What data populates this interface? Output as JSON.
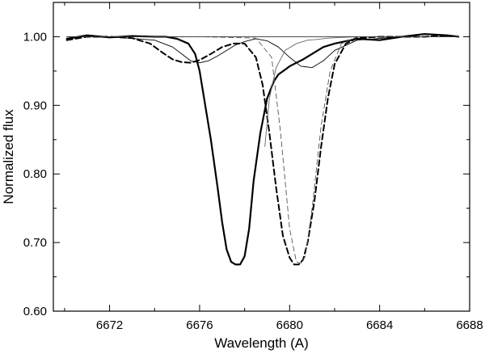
{
  "chart_data": {
    "type": "line",
    "title": "",
    "xlabel": "Wavelength (A)",
    "ylabel": "Normalized flux",
    "xlim": [
      6669.5,
      6688.0
    ],
    "ylim": [
      0.6,
      1.05
    ],
    "xticks": [
      6672,
      6676,
      6680,
      6684,
      6688
    ],
    "xtick_labels": [
      "6672",
      "6676",
      "6680",
      "6684",
      "6688"
    ],
    "xminor_ticks": [
      6670,
      6674,
      6678,
      6682,
      6686
    ],
    "yticks": [
      0.6,
      0.7,
      0.8,
      0.9,
      1.0
    ],
    "ytick_labels": [
      "0.60",
      "0.70",
      "0.80",
      "0.90",
      "1.00"
    ],
    "yminor_ticks": [
      0.65,
      0.75,
      0.85,
      0.95
    ],
    "grid": false,
    "series": [
      {
        "style": "solid-thick",
        "color": "#000000",
        "x": [
          6670.1,
          6671.0,
          6672.0,
          6673.0,
          6674.0,
          6674.5,
          6675.0,
          6675.5,
          6675.8,
          6676.0,
          6676.2,
          6676.5,
          6676.8,
          6677.0,
          6677.2,
          6677.4,
          6677.6,
          6677.8,
          6678.0,
          6678.2,
          6678.4,
          6678.7,
          6679.0,
          6679.3,
          6679.5,
          6679.8,
          6680.0,
          6680.3,
          6680.6,
          6681.0,
          6681.5,
          6682.0,
          6683.0,
          6684.0,
          6685.0,
          6686.0,
          6687.0,
          6687.5
        ],
        "y": [
          0.997,
          1.002,
          0.999,
          1.001,
          1.0,
          1.0,
          0.997,
          0.99,
          0.975,
          0.95,
          0.91,
          0.85,
          0.78,
          0.73,
          0.69,
          0.672,
          0.668,
          0.668,
          0.68,
          0.72,
          0.79,
          0.86,
          0.91,
          0.935,
          0.945,
          0.952,
          0.957,
          0.962,
          0.967,
          0.975,
          0.985,
          0.99,
          0.997,
          0.995,
          1.0,
          1.004,
          1.002,
          1.0
        ]
      },
      {
        "style": "dashed-thick",
        "color": "#000000",
        "x": [
          6670.1,
          6671.0,
          6672.0,
          6673.0,
          6673.8,
          6674.3,
          6674.8,
          6675.2,
          6675.6,
          6676.0,
          6676.5,
          6677.0,
          6677.5,
          6678.0,
          6678.5,
          6678.8,
          6679.1,
          6679.4,
          6679.7,
          6680.0,
          6680.2,
          6680.4,
          6680.6,
          6680.8,
          6681.1,
          6681.4,
          6681.7,
          6682.0,
          6682.5,
          6683.0,
          6684.0,
          6685.0,
          6686.0,
          6687.0,
          6687.5
        ],
        "y": [
          0.995,
          1.0,
          1.0,
          0.998,
          0.99,
          0.978,
          0.967,
          0.963,
          0.962,
          0.966,
          0.975,
          0.985,
          0.99,
          0.99,
          0.97,
          0.93,
          0.86,
          0.78,
          0.71,
          0.678,
          0.668,
          0.668,
          0.675,
          0.7,
          0.76,
          0.84,
          0.91,
          0.96,
          0.99,
          0.998,
          1.0,
          1.0,
          1.0,
          1.002,
          1.0
        ]
      },
      {
        "style": "solid-thin",
        "color": "#000000",
        "x": [
          6670.1,
          6672.0,
          6674.0,
          6674.8,
          6675.2,
          6675.6,
          6676.0,
          6676.4,
          6676.8,
          6677.2,
          6677.6,
          6678.0,
          6678.5,
          6679.0,
          6679.5,
          6680.0,
          6680.5,
          6681.0,
          6681.5,
          6682.0,
          6683.0,
          6685.0,
          6687.5
        ],
        "y": [
          1.0,
          1.0,
          0.995,
          0.985,
          0.975,
          0.965,
          0.962,
          0.965,
          0.972,
          0.98,
          0.988,
          0.993,
          0.997,
          0.994,
          0.985,
          0.97,
          0.957,
          0.955,
          0.965,
          0.98,
          0.995,
          1.0,
          1.0
        ]
      },
      {
        "style": "solid-thin",
        "color": "#666666",
        "x": [
          6678.9,
          6679.1,
          6679.4,
          6679.8,
          6680.3,
          6680.8,
          6681.2,
          6681.7,
          6682.3,
          6683.0,
          6684.0,
          6687.5
        ],
        "y": [
          0.84,
          0.91,
          0.955,
          0.98,
          0.99,
          0.995,
          0.996,
          0.998,
          0.999,
          1.0,
          1.0,
          1.0
        ]
      },
      {
        "style": "dashed-thin",
        "color": "#555555",
        "x": [
          6670.1,
          6676.0,
          6678.5,
          6679.2,
          6679.6,
          6680.0,
          6680.3,
          6680.5,
          6680.7,
          6681.0,
          6681.4,
          6681.8,
          6682.3,
          6683.0,
          6687.5
        ],
        "y": [
          1.0,
          1.0,
          0.998,
          0.97,
          0.86,
          0.72,
          0.672,
          0.67,
          0.68,
          0.75,
          0.87,
          0.95,
          0.99,
          1.0,
          1.0
        ]
      },
      {
        "style": "solid-thin",
        "color": "#333333",
        "x": [
          6670.1,
          6687.5
        ],
        "y": [
          1.0,
          1.0
        ]
      }
    ]
  }
}
